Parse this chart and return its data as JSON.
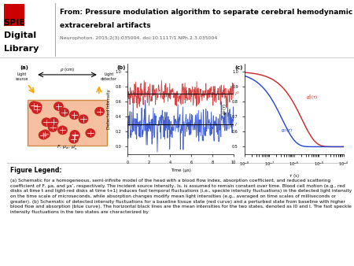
{
  "header_title": "From: Pressure modulation algorithm to separate cerebral hemodynamic signals from\nextracerebral artifacts",
  "header_subtitle": "Neurophoton. 2015;2(3):035004. doi:10.1117/1.NPh.2.3.035004",
  "header_logo_lines": [
    "SPIE",
    "Digital",
    "Library"
  ],
  "figure_legend_title": "Figure Legend:",
  "figure_legend_text": "(a) Schematic for a homogeneous, semi-infinite model of the head with a blood flow index, absorption coefficient, and reduced scattering coefficient of F, μa, and μs’, respectively. The incident source intensity, Is, is assumed to remain constant over time. Blood cell motion (e.g., red disks at time t and light-red disks at time t+1) induces fast temporal fluctuations (i.e., speckle intensity fluctuations) in the detected light intensity on the time scale of microseconds, while absorption changes modify mean light intensities (e.g., averaged on time scales of milliseconds or greater). (b) Schematic of detected intensity fluctuations for a baseline tissue state (red curve) and a perturbed state from baseline with higher blood flow and absorption (blue curve). The horizontal black lines are the mean intensities for the two states, denoted as I0 and I. The fast speckle intensity fluctuations in the two states are characterized by",
  "bg_color": "#ffffff",
  "header_bg": "#ffffff",
  "divider_color": "#cccccc",
  "logo_color": "#000000",
  "title_color": "#000000",
  "subtitle_color": "#555555"
}
